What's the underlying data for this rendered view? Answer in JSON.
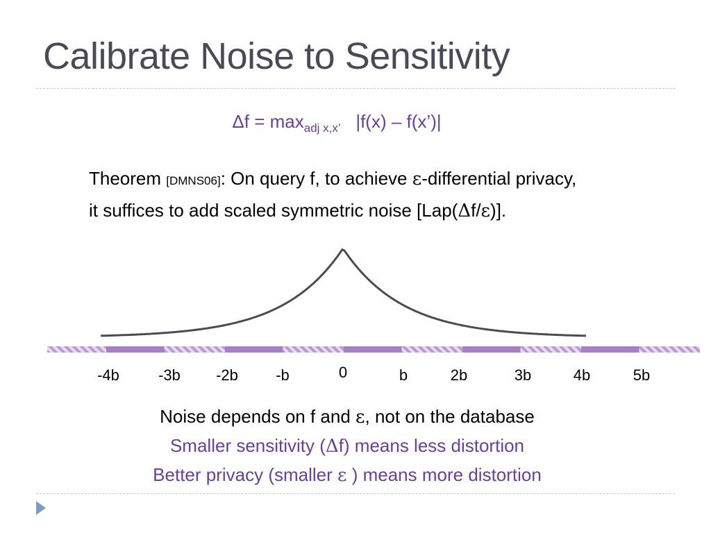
{
  "slide": {
    "title": "Calibrate Noise to Sensitivity"
  },
  "formula": {
    "lhs": "Δf = max",
    "subscript": "adj x,x’",
    "rhs": "|f(x) – f(x’)|"
  },
  "theorem": {
    "lead": "Theorem ",
    "citation": "[DMNS06]",
    "line1_rest": ": On query f, to achieve ",
    "epsilon": "ε",
    "line1_end": "-differential privacy,",
    "line2_start": "it suffices to add scaled symmetric noise [Lap(",
    "delta": "Δ",
    "line2_mid": "f/",
    "epsilon2": "ε",
    "line2_end": ")]."
  },
  "axis": {
    "tick_labels": [
      "-4b",
      "-3b",
      "-2b",
      "-b",
      "0",
      "b",
      "2b",
      "3b",
      "4b",
      "5b"
    ],
    "bar_color": "#a87fc6",
    "curve_color": "#4a4a57"
  },
  "notes": {
    "line1_start": "Noise depends on f and ",
    "line1_epsilon": "ε",
    "line1_end": ", not on the database",
    "line2_start": "Smaller sensitivity (",
    "line2_delta": "Δ",
    "line2_end": "f) means less distortion",
    "line3_start": "Better privacy (smaller ",
    "line3_epsilon": "ε",
    "line3_end": " ) means more distortion"
  },
  "colors": {
    "title": "#4a4a57",
    "accent_purple": "#6a3f9a",
    "bullet": "#7a9cc6"
  }
}
